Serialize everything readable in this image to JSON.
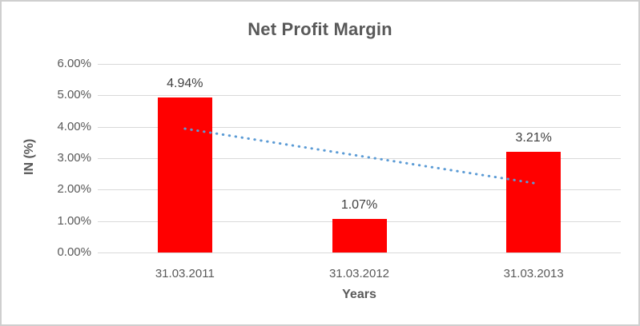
{
  "chart": {
    "colors": {
      "bar_fill": "#ff0000",
      "trendline": "#5b9bd5",
      "gridline": "#d9d9d9",
      "title_text": "#595959",
      "axis_tick_text": "#595959",
      "data_label_text": "#404040",
      "frame_border": "#cfcfcf",
      "background": "#ffffff"
    }
  },
  "chart_data": {
    "type": "bar",
    "title": "Net Profit Margin",
    "xlabel": "Years",
    "ylabel": "IN (%)",
    "categories": [
      "31.03.2011",
      "31.03.2012",
      "31.03.2013"
    ],
    "values": [
      4.94,
      1.07,
      3.21
    ],
    "data_labels": [
      "4.94%",
      "1.07%",
      "3.21%"
    ],
    "ylim": [
      0,
      6
    ],
    "ytick_step": 1,
    "ytick_labels": [
      "0.00%",
      "1.00%",
      "2.00%",
      "3.00%",
      "4.00%",
      "5.00%",
      "6.00%"
    ],
    "grid": true,
    "legend": false,
    "trendline": {
      "type": "linear",
      "style": "dotted",
      "start_value": 3.94,
      "end_value": 2.21,
      "color": "#5b9bd5"
    }
  }
}
